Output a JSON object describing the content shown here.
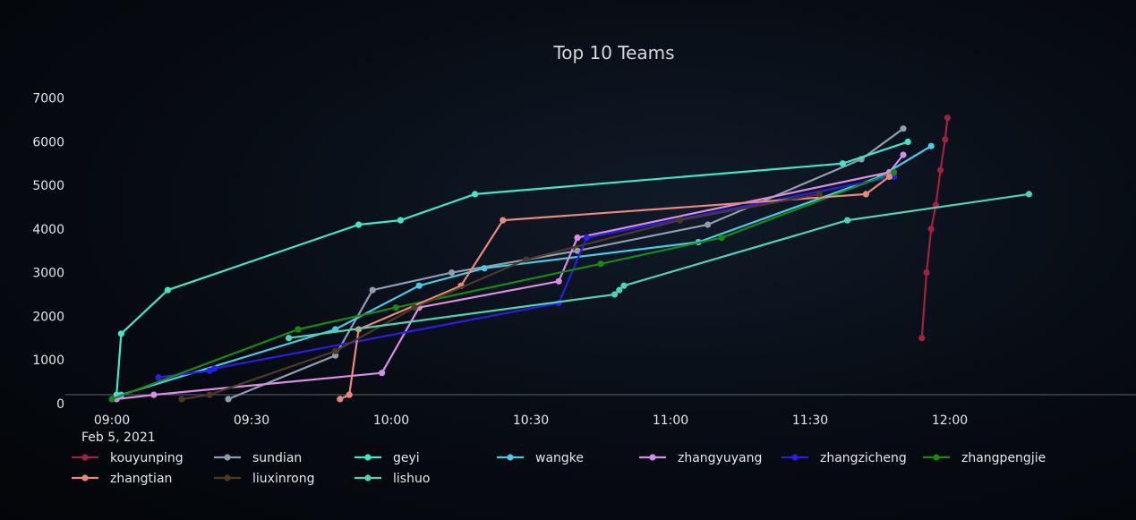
{
  "chart_data": {
    "type": "line",
    "title": "Top 10 Teams",
    "x_axis": {
      "type": "time",
      "date_label": "Feb 5, 2021",
      "tick_labels": [
        "09:00",
        "09:30",
        "10:00",
        "10:30",
        "11:00",
        "11:30",
        "12:00"
      ],
      "tick_values": [
        "09:00",
        "09:30",
        "10:00",
        "10:30",
        "11:00",
        "11:30",
        "12:00"
      ],
      "range": [
        "08:50",
        "12:40"
      ]
    },
    "y_axis": {
      "tick_labels": [
        "0",
        "1000",
        "2000",
        "3000",
        "4000",
        "5000",
        "6000",
        "7000"
      ],
      "tick_values": [
        0,
        1000,
        2000,
        3000,
        4000,
        5000,
        6000,
        7000
      ],
      "range": [
        -250,
        7300
      ]
    },
    "grid": false,
    "legend_position": "bottom",
    "series": [
      {
        "name": "kouyunping",
        "color": "#a3213c",
        "points": [
          [
            "11:54",
            1500
          ],
          [
            "11:55",
            3000
          ],
          [
            "11:56",
            4000
          ],
          [
            "11:57",
            4550
          ],
          [
            "11:58",
            5350
          ],
          [
            "11:59",
            6050
          ],
          [
            "11:59:30",
            6550
          ]
        ]
      },
      {
        "name": "sundian",
        "color": "#8e9db0",
        "points": [
          [
            "09:25",
            100
          ],
          [
            "09:48",
            1100
          ],
          [
            "09:56",
            2600
          ],
          [
            "10:13",
            3000
          ],
          [
            "10:40",
            3500
          ],
          [
            "11:08",
            4100
          ],
          [
            "11:41",
            5600
          ],
          [
            "11:50",
            6300
          ]
        ]
      },
      {
        "name": "geyi",
        "color": "#3de8c5",
        "points": [
          [
            "09:01",
            200
          ],
          [
            "09:02",
            1600
          ],
          [
            "09:12",
            2600
          ],
          [
            "09:53",
            4100
          ],
          [
            "10:02",
            4200
          ],
          [
            "10:18",
            4800
          ],
          [
            "11:37",
            5500
          ],
          [
            "11:51",
            6000
          ]
        ]
      },
      {
        "name": "wangke",
        "color": "#48c9e6",
        "points": [
          [
            "09:02",
            200
          ],
          [
            "09:48",
            1700
          ],
          [
            "10:06",
            2700
          ],
          [
            "10:20",
            3100
          ],
          [
            "11:06",
            3700
          ],
          [
            "11:45",
            5200
          ],
          [
            "11:56",
            5900
          ]
        ]
      },
      {
        "name": "zhangyuyang",
        "color": "#d88de6",
        "points": [
          [
            "09:01",
            100
          ],
          [
            "09:09",
            200
          ],
          [
            "09:58",
            700
          ],
          [
            "10:06",
            2200
          ],
          [
            "10:36",
            2800
          ],
          [
            "10:40",
            3800
          ],
          [
            "11:47",
            5300
          ],
          [
            "11:50",
            5700
          ]
        ]
      },
      {
        "name": "zhangzicheng",
        "color": "#2a1de6",
        "points": [
          [
            "09:10",
            600
          ],
          [
            "09:21",
            750
          ],
          [
            "09:22",
            800
          ],
          [
            "10:36",
            2300
          ],
          [
            "10:42",
            3800
          ],
          [
            "11:48",
            5200
          ]
        ]
      },
      {
        "name": "zhangpengjie",
        "color": "#168a12",
        "points": [
          [
            "09:00",
            100
          ],
          [
            "09:40",
            1700
          ],
          [
            "10:01",
            2200
          ],
          [
            "10:45",
            3200
          ],
          [
            "11:11",
            3800
          ],
          [
            "11:48",
            5300
          ]
        ]
      },
      {
        "name": "zhangtian",
        "color": "#e8897a",
        "points": [
          [
            "09:49",
            100
          ],
          [
            "09:51",
            200
          ],
          [
            "09:53",
            1700
          ],
          [
            "10:15",
            2700
          ],
          [
            "10:24",
            4200
          ],
          [
            "11:42",
            4800
          ],
          [
            "11:47",
            5200
          ]
        ]
      },
      {
        "name": "liuxinrong",
        "color": "#4b3a26",
        "points": [
          [
            "09:15",
            100
          ],
          [
            "09:21",
            200
          ],
          [
            "09:48",
            1200
          ],
          [
            "10:05",
            2200
          ],
          [
            "10:29",
            3300
          ],
          [
            "11:02",
            4200
          ],
          [
            "11:32",
            4800
          ]
        ]
      },
      {
        "name": "lishuo",
        "color": "#4ed4b0",
        "points": [
          [
            "09:38",
            1500
          ],
          [
            "10:48",
            2500
          ],
          [
            "10:49",
            2600
          ],
          [
            "10:50",
            2700
          ],
          [
            "11:38",
            4200
          ],
          [
            "12:17",
            4800
          ]
        ]
      }
    ]
  }
}
